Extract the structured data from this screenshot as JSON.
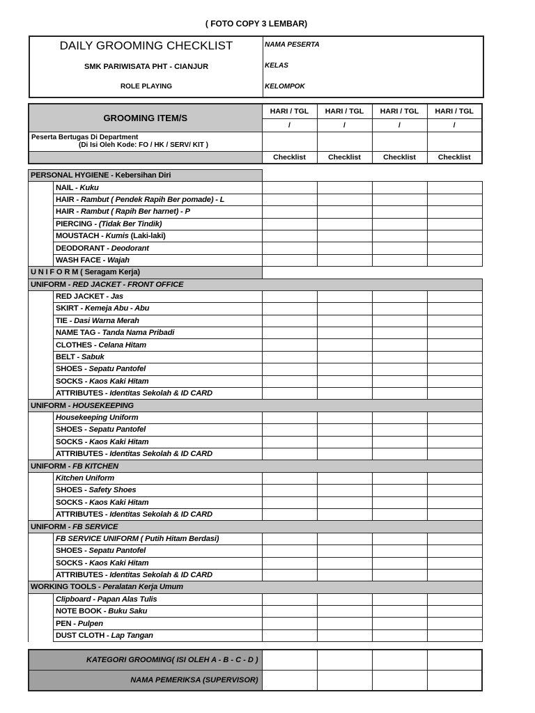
{
  "top_note": "( FOTO COPY 3 LEMBAR)",
  "header": {
    "title": "DAILY GROOMING CHECKLIST",
    "school": "SMK PARIWISATA PHT - CIANJUR",
    "subtitle": "ROLE PLAYING",
    "fields": [
      "NAMA PESERTA",
      "KELAS",
      "KELOMPOK"
    ]
  },
  "grid": {
    "item_header": "GROOMING ITEM/S",
    "day_label": "HARI / TGL",
    "date_sep": "/",
    "dept_line1": "Peserta Bertugas Di Department",
    "dept_line2": "(Di Isi Oleh Kode: FO / HK / SERV/ KIT )",
    "check_label": "Checklist"
  },
  "rows": [
    {
      "type": "section",
      "short": true,
      "boxed": true,
      "segs": [
        {
          "t": "PERSONAL HYGIENE - Kebersihan Diri"
        }
      ]
    },
    {
      "type": "item",
      "segs": [
        {
          "t": "NAIL - "
        },
        {
          "t": "Kuku",
          "i": true
        }
      ]
    },
    {
      "type": "item",
      "segs": [
        {
          "t": "HAIR - "
        },
        {
          "t": "Rambut ( Pendek Rapih Ber pomade) - L",
          "i": true
        }
      ]
    },
    {
      "type": "item",
      "segs": [
        {
          "t": "HAIR - "
        },
        {
          "t": "Rambut ( Rapih Ber harnet) - P",
          "i": true
        }
      ]
    },
    {
      "type": "item",
      "segs": [
        {
          "t": "PIERCING - "
        },
        {
          "t": "(Tidak Ber Tindik)",
          "i": true
        }
      ]
    },
    {
      "type": "item",
      "segs": [
        {
          "t": "MOUSTACH - "
        },
        {
          "t": "Kumis",
          "i": true
        },
        {
          "t": " (Laki-laki)"
        }
      ]
    },
    {
      "type": "item",
      "segs": [
        {
          "t": "DEODORANT - "
        },
        {
          "t": "Deodorant",
          "i": true
        }
      ]
    },
    {
      "type": "item",
      "segs": [
        {
          "t": "WASH FACE - "
        },
        {
          "t": "Wajah",
          "i": true
        }
      ]
    },
    {
      "type": "section",
      "short": true,
      "segs": [
        {
          "t": "U N I F O R M ( Seragam Kerja)"
        }
      ]
    },
    {
      "type": "section",
      "segs": [
        {
          "t": "UNIFORM - "
        },
        {
          "t": "RED JACKET - FRONT OFFICE",
          "i": true
        }
      ]
    },
    {
      "type": "item",
      "segs": [
        {
          "t": "RED JACKET - "
        },
        {
          "t": "Jas",
          "i": true
        }
      ]
    },
    {
      "type": "item",
      "segs": [
        {
          "t": "SKIRT - "
        },
        {
          "t": "Kemeja Abu - Abu",
          "i": true
        }
      ]
    },
    {
      "type": "item",
      "segs": [
        {
          "t": "TIE - "
        },
        {
          "t": "Dasi Warna Merah",
          "i": true
        }
      ]
    },
    {
      "type": "item",
      "segs": [
        {
          "t": "NAME TAG - "
        },
        {
          "t": "Tanda Nama Pribadi",
          "i": true
        }
      ]
    },
    {
      "type": "item",
      "segs": [
        {
          "t": "CLOTHES - "
        },
        {
          "t": "Celana Hitam",
          "i": true
        }
      ]
    },
    {
      "type": "item",
      "segs": [
        {
          "t": "BELT - "
        },
        {
          "t": "Sabuk",
          "i": true
        }
      ]
    },
    {
      "type": "item",
      "segs": [
        {
          "t": "SHOES - "
        },
        {
          "t": "Sepatu Pantofel",
          "i": true
        }
      ]
    },
    {
      "type": "item",
      "segs": [
        {
          "t": "SOCKS - "
        },
        {
          "t": "Kaos Kaki Hitam",
          "i": true
        }
      ]
    },
    {
      "type": "item",
      "segs": [
        {
          "t": "ATTRIBUTES - "
        },
        {
          "t": "Identitas Sekolah & ID CARD",
          "i": true
        }
      ]
    },
    {
      "type": "section",
      "segs": [
        {
          "t": "UNIFORM - "
        },
        {
          "t": "HOUSEKEEPING",
          "i": true
        }
      ]
    },
    {
      "type": "item",
      "segs": [
        {
          "t": "Housekeeping Uniform",
          "i": true
        }
      ]
    },
    {
      "type": "item",
      "segs": [
        {
          "t": "SHOES - "
        },
        {
          "t": "Sepatu Pantofel",
          "i": true
        }
      ]
    },
    {
      "type": "item",
      "segs": [
        {
          "t": "SOCKS - "
        },
        {
          "t": "Kaos Kaki Hitam",
          "i": true
        }
      ]
    },
    {
      "type": "item",
      "segs": [
        {
          "t": "ATTRIBUTES - "
        },
        {
          "t": "Identitas Sekolah & ID CARD",
          "i": true
        }
      ]
    },
    {
      "type": "section",
      "segs": [
        {
          "t": "UNIFORM - "
        },
        {
          "t": "FB KITCHEN",
          "i": true
        }
      ]
    },
    {
      "type": "item",
      "segs": [
        {
          "t": "Kitchen Uniform",
          "i": true
        }
      ]
    },
    {
      "type": "item",
      "segs": [
        {
          "t": "SHOES - "
        },
        {
          "t": "Safety Shoes",
          "i": true
        }
      ]
    },
    {
      "type": "item",
      "segs": [
        {
          "t": "SOCKS - "
        },
        {
          "t": "Kaos Kaki Hitam",
          "i": true
        }
      ]
    },
    {
      "type": "item",
      "segs": [
        {
          "t": "ATTRIBUTES - "
        },
        {
          "t": "Identitas Sekolah & ID CARD",
          "i": true
        }
      ]
    },
    {
      "type": "section",
      "segs": [
        {
          "t": "UNIFORM - "
        },
        {
          "t": "FB SERVICE",
          "i": true
        }
      ]
    },
    {
      "type": "item",
      "segs": [
        {
          "t": "FB SERVICE UNIFORM ( Putih Hitam Berdasi)",
          "i": true
        }
      ]
    },
    {
      "type": "item",
      "segs": [
        {
          "t": "SHOES - "
        },
        {
          "t": "Sepatu Pantofel",
          "i": true
        }
      ]
    },
    {
      "type": "item",
      "segs": [
        {
          "t": "SOCKS - "
        },
        {
          "t": "Kaos Kaki Hitam",
          "i": true
        }
      ]
    },
    {
      "type": "item",
      "segs": [
        {
          "t": "ATTRIBUTES - "
        },
        {
          "t": "Identitas Sekolah & ID CARD",
          "i": true
        }
      ]
    },
    {
      "type": "section",
      "segs": [
        {
          "t": "WORKING TOOLS - "
        },
        {
          "t": "Peralatan Kerja Umum",
          "i": true
        }
      ]
    },
    {
      "type": "item",
      "segs": [
        {
          "t": "Clipboard - Papan Alas Tulis",
          "i": true
        }
      ]
    },
    {
      "type": "item",
      "segs": [
        {
          "t": "NOTE BOOK - "
        },
        {
          "t": "Buku Saku",
          "i": true
        }
      ]
    },
    {
      "type": "item",
      "segs": [
        {
          "t": "PEN - "
        },
        {
          "t": "Pulpen",
          "i": true
        }
      ]
    },
    {
      "type": "item",
      "segs": [
        {
          "t": "DUST CLOTH - "
        },
        {
          "t": "Lap Tangan",
          "i": true
        }
      ]
    }
  ],
  "footer": {
    "category": "KATEGORI GROOMING( ISI OLEH A - B - C - D )",
    "supervisor": "NAMA PEMERIKSA (SUPERVISOR)"
  }
}
